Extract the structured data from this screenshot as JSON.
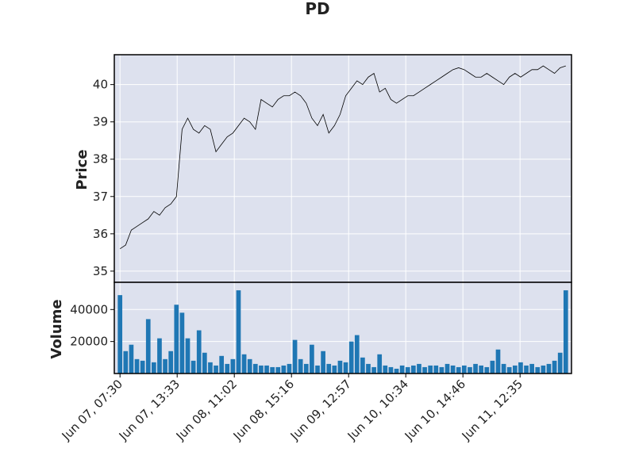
{
  "chart_data": {
    "type": "line",
    "title": "PD",
    "price_panel": {
      "ylabel": "Price",
      "ylim": [
        34.7,
        40.8
      ],
      "yticks": [
        35,
        36,
        37,
        38,
        39,
        40
      ],
      "ytick_labels": [
        "35",
        "36",
        "37",
        "38",
        "39",
        "40"
      ],
      "background": "#dde1ee",
      "grid": true,
      "line_color": "#000000"
    },
    "volume_panel": {
      "ylabel": "Volume",
      "ylim": [
        0,
        57000
      ],
      "yticks": [
        20000,
        40000
      ],
      "ytick_labels": [
        "20000",
        "40000"
      ],
      "background": "#dde1ee",
      "grid": true,
      "bar_color": "#1f77b4"
    },
    "x_index_range": [
      -1,
      79
    ],
    "xticks": [
      {
        "label": "Jun 07, 07:30",
        "index": 0
      },
      {
        "label": "Jun 07, 13:33",
        "index": 10
      },
      {
        "label": "Jun 08, 11:02",
        "index": 20
      },
      {
        "label": "Jun 08, 15:16",
        "index": 30
      },
      {
        "label": "Jun 09, 12:57",
        "index": 40
      },
      {
        "label": "Jun 10, 10:34",
        "index": 50
      },
      {
        "label": "Jun 10, 14:46",
        "index": 60
      },
      {
        "label": "Jun 11, 12:35",
        "index": 70
      }
    ],
    "x_index": [
      0,
      1,
      2,
      3,
      4,
      5,
      6,
      7,
      8,
      9,
      10,
      11,
      12,
      13,
      14,
      15,
      16,
      17,
      18,
      19,
      20,
      21,
      22,
      23,
      24,
      25,
      26,
      27,
      28,
      29,
      30,
      31,
      32,
      33,
      34,
      35,
      36,
      37,
      38,
      39,
      40,
      41,
      42,
      43,
      44,
      45,
      46,
      47,
      48,
      49,
      50,
      51,
      52,
      53,
      54,
      55,
      55,
      56,
      57,
      58,
      59,
      60,
      61,
      62,
      63,
      64,
      65,
      66,
      67,
      68,
      69,
      70,
      71,
      72,
      73,
      74,
      75,
      76,
      77,
      78
    ],
    "price": [
      35.6,
      35.7,
      36.1,
      36.2,
      36.3,
      36.4,
      36.6,
      36.5,
      36.7,
      36.8,
      37.0,
      38.8,
      39.1,
      38.8,
      38.7,
      38.9,
      38.8,
      38.2,
      38.4,
      38.6,
      38.7,
      38.9,
      39.1,
      39.0,
      38.8,
      39.6,
      39.5,
      39.4,
      39.6,
      39.7,
      39.7,
      39.8,
      39.7,
      39.5,
      39.1,
      38.9,
      39.2,
      38.7,
      38.9,
      39.2,
      39.7,
      39.9,
      40.1,
      40.0,
      40.2,
      40.3,
      39.8,
      39.9,
      39.6,
      39.5,
      39.6,
      39.7,
      39.7,
      39.8,
      39.9,
      40.0,
      40.1,
      40.2,
      40.3,
      40.4,
      40.45,
      40.4,
      40.3,
      40.2,
      40.2,
      40.3,
      40.2,
      40.1,
      40.0,
      40.2,
      40.3,
      40.2,
      40.3,
      40.4,
      40.4,
      40.5,
      40.4,
      40.3,
      40.45,
      40.5
    ],
    "volume": [
      49000,
      14000,
      18000,
      9000,
      8000,
      34000,
      7000,
      22000,
      9000,
      14000,
      43000,
      38000,
      22000,
      8000,
      27000,
      13000,
      7000,
      5000,
      11000,
      6000,
      9000,
      52000,
      12000,
      9000,
      6000,
      5000,
      5000,
      4000,
      4000,
      5000,
      6000,
      21000,
      9000,
      6000,
      18000,
      5000,
      14000,
      6000,
      5000,
      8000,
      7000,
      20000,
      24000,
      10000,
      6000,
      4000,
      12000,
      5000,
      4000,
      3000,
      5000,
      4000,
      5000,
      6000,
      4000,
      5000,
      5000,
      4000,
      6000,
      5000,
      4000,
      5000,
      4000,
      6000,
      5000,
      4000,
      8000,
      15000,
      6000,
      4000,
      5000,
      7000,
      5000,
      6000,
      4000,
      5000,
      6000,
      8000,
      13000,
      52000
    ]
  }
}
